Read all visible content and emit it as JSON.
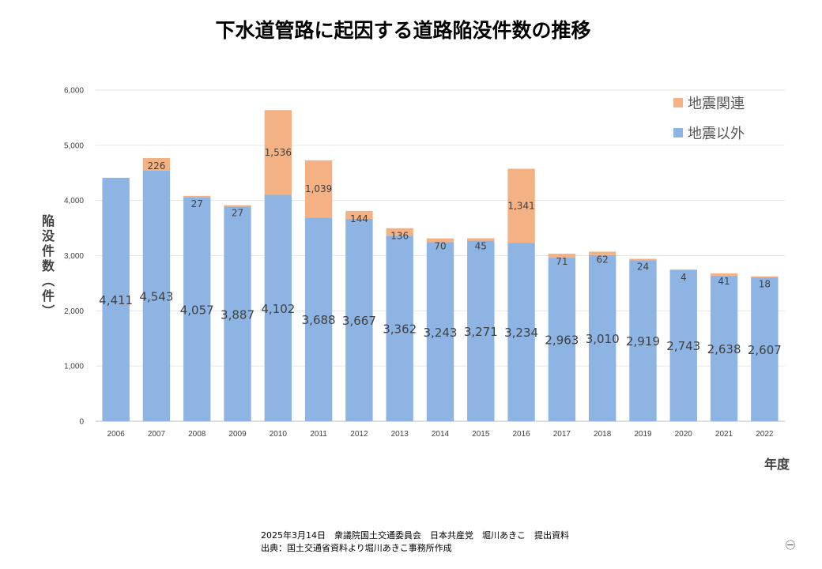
{
  "chart_data": {
    "type": "bar",
    "stacked": true,
    "title": "下水道管路に起因する道路陥没件数の推移",
    "ylabel": "陥没件数（件）",
    "xlabel": "年度",
    "categories": [
      "2006",
      "2007",
      "2008",
      "2009",
      "2010",
      "2011",
      "2012",
      "2013",
      "2014",
      "2015",
      "2016",
      "2017",
      "2018",
      "2019",
      "2020",
      "2021",
      "2022"
    ],
    "series": [
      {
        "name": "地震以外",
        "color": "#8DB4E2",
        "values": [
          4411,
          4543,
          4057,
          3887,
          4102,
          3688,
          3667,
          3362,
          3243,
          3271,
          3234,
          2963,
          3010,
          2919,
          2743,
          2638,
          2607
        ],
        "labels": [
          "4,411",
          "4,543",
          "4,057",
          "3,887",
          "4,102",
          "3,688",
          "3,667",
          "3,362",
          "3,243",
          "3,271",
          "3,234",
          "2,963",
          "3,010",
          "2,919",
          "2,743",
          "2,638",
          "2,607"
        ]
      },
      {
        "name": "地震関連",
        "color": "#F4B183",
        "values": [
          0,
          226,
          27,
          27,
          1536,
          1039,
          144,
          136,
          70,
          45,
          1341,
          71,
          62,
          24,
          4,
          41,
          18
        ],
        "labels": [
          "",
          "226",
          "27",
          "27",
          "1,536",
          "1,039",
          "144",
          "136",
          "70",
          "45",
          "1,341",
          "71",
          "62",
          "24",
          "4",
          "41",
          "18"
        ]
      }
    ],
    "legend_order": [
      "地震関連",
      "地震以外"
    ],
    "legend_position": "top-right",
    "ylim": [
      0,
      6000
    ],
    "yticks": [
      0,
      1000,
      2000,
      3000,
      4000,
      5000,
      6000
    ],
    "ytick_labels": [
      "0",
      "1,000",
      "2,000",
      "3,000",
      "4,000",
      "5,000",
      "6,000"
    ],
    "grid": true
  },
  "footer": {
    "line1": "2025年3月14日　衆議院国土交通委員会　日本共産党　堀川あきこ　提出資料",
    "line2": "出典：国土交通省資料より堀川あきこ事務所作成"
  },
  "page_number": "㊀"
}
